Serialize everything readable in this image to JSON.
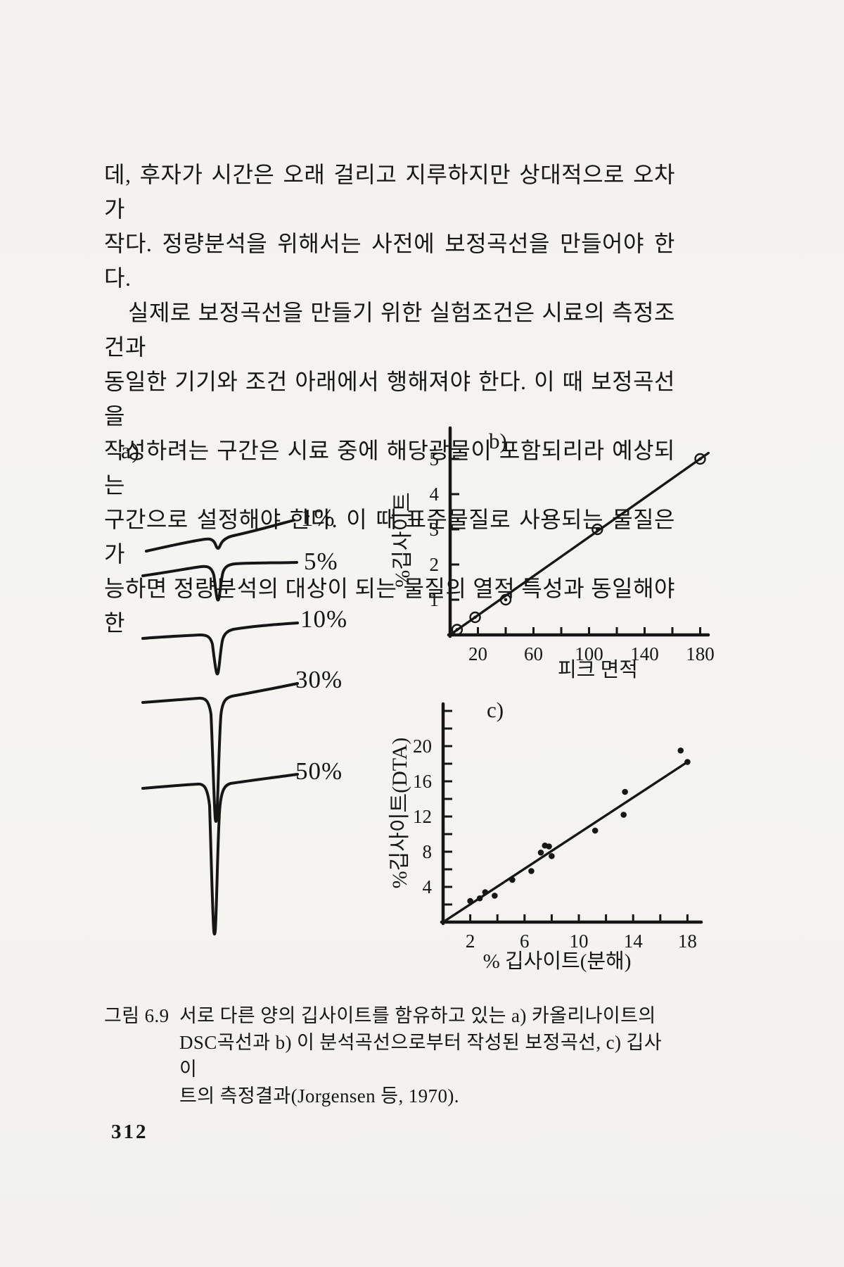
{
  "page": {
    "number": "312"
  },
  "body": {
    "lines": [
      "데, 후자가 시간은 오래 걸리고 지루하지만 상대적으로 오차가",
      "작다. 정량분석을 위해서는 사전에 보정곡선을 만들어야 한다.",
      "실제로 보정곡선을 만들기 위한 실험조건은 시료의 측정조건과",
      "동일한 기기와 조건 아래에서 행해져야 한다. 이 때 보정곡선을",
      "작성하려는 구간은 시료 중에 해당광물이 포함되리라 예상되는",
      "구간으로 설정해야 한다. 이 때 표준물질로 사용되는 물질은 가",
      "능하면 정량분석의 대상이 되는 물질의 열적 특성과 동일해야 한"
    ]
  },
  "figure": {
    "panel_a": {
      "label": "a)",
      "curve_labels": [
        "1%",
        "5%",
        "10%",
        "30%",
        "50%"
      ]
    },
    "caption": {
      "label": "그림 6.9",
      "lines": [
        "서로 다른 양의 깁사이트를 함유하고 있는 a) 카올리나이트의",
        "DSC곡선과 b) 이 분석곡선으로부터 작성된 보정곡선, c) 깁사이",
        "트의 측정결과(Jorgensen 등, 1970)."
      ]
    }
  },
  "chart_data": [
    {
      "id": "b",
      "type": "scatter",
      "panel_label": "b)",
      "title": "",
      "xlabel": "피크 면적",
      "ylabel": "%깁사이트",
      "xlim": [
        0,
        205
      ],
      "ylim": [
        0,
        5.9
      ],
      "grid": false,
      "x_tick_step": 20,
      "x_labeled_ticks": [
        20,
        60,
        100,
        140,
        180
      ],
      "y_tick_step": 1,
      "y_labeled_ticks": [
        1,
        2,
        3,
        4,
        5
      ],
      "marker": "circled-dot",
      "points": [
        [
          5,
          0.15
        ],
        [
          18,
          0.5
        ],
        [
          40,
          1.0
        ],
        [
          106,
          3.0
        ],
        [
          180,
          5.0
        ]
      ],
      "fit_line": [
        [
          1,
          0.03
        ],
        [
          186,
          5.17
        ]
      ]
    },
    {
      "id": "c",
      "type": "scatter",
      "panel_label": "c)",
      "title": "",
      "xlabel": "% 깁사이트(분해)",
      "ylabel": "%깁사이트(DTA)",
      "xlim": [
        0,
        19
      ],
      "ylim": [
        0,
        24.8
      ],
      "grid": false,
      "x_tick_step": 2,
      "x_labeled_ticks": [
        2,
        6,
        10,
        14,
        18
      ],
      "y_tick_step": 2,
      "y_labeled_ticks": [
        4,
        8,
        12,
        16,
        20
      ],
      "marker": "dot",
      "points": [
        [
          2.0,
          2.4
        ],
        [
          2.7,
          2.7
        ],
        [
          3.1,
          3.4
        ],
        [
          3.8,
          3.0
        ],
        [
          5.1,
          4.8
        ],
        [
          6.5,
          5.8
        ],
        [
          7.2,
          7.9
        ],
        [
          7.5,
          8.7
        ],
        [
          7.8,
          8.6
        ],
        [
          8.0,
          7.5
        ],
        [
          11.2,
          10.4
        ],
        [
          13.3,
          12.2
        ],
        [
          13.4,
          14.8
        ],
        [
          17.5,
          19.5
        ],
        [
          18.0,
          18.2
        ]
      ],
      "fit_line": [
        [
          0.2,
          0.2
        ],
        [
          18.1,
          18.3
        ]
      ]
    }
  ]
}
